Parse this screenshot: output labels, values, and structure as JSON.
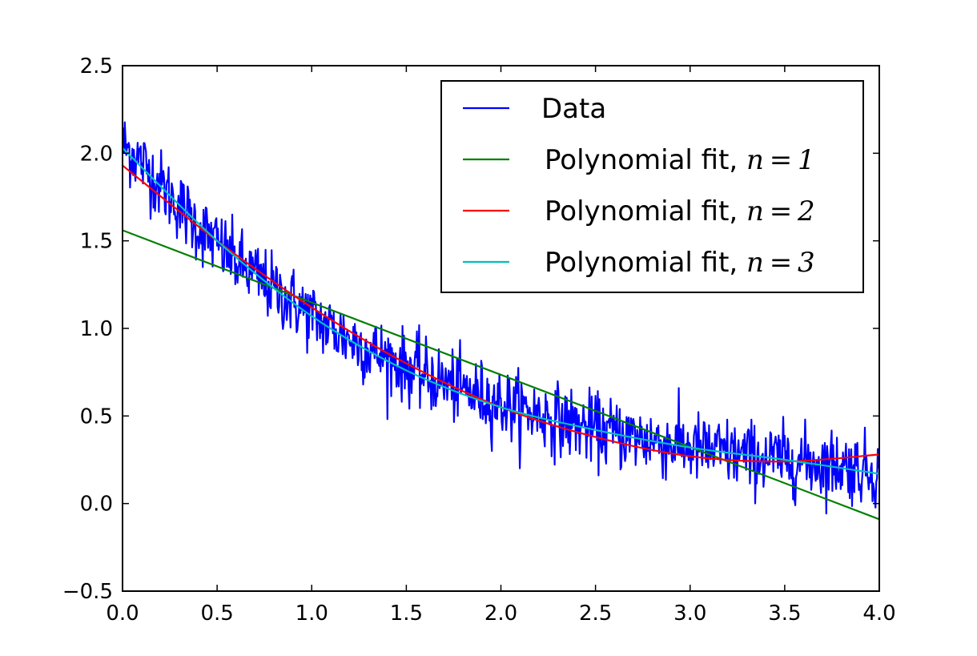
{
  "chart_data": {
    "type": "line",
    "title": "",
    "xlabel": "",
    "ylabel": "",
    "xlim": [
      0.0,
      4.0
    ],
    "ylim": [
      -0.5,
      2.5
    ],
    "xticks": [
      "0.0",
      "0.5",
      "1.0",
      "1.5",
      "2.0",
      "2.5",
      "3.0",
      "3.5",
      "4.0"
    ],
    "yticks": [
      "−0.5",
      "0.0",
      "0.5",
      "1.0",
      "1.5",
      "2.0",
      "2.5"
    ],
    "grid": false,
    "legend_position": "top-right",
    "series": [
      {
        "name": "Data",
        "color": "#0000ff",
        "style": "noisy line",
        "x": [
          0.0,
          0.1,
          0.2,
          0.3,
          0.4,
          0.5,
          0.6,
          0.7,
          0.8,
          0.9,
          1.0,
          1.1,
          1.2,
          1.3,
          1.4,
          1.5,
          1.6,
          1.7,
          1.8,
          1.9,
          2.0,
          2.1,
          2.2,
          2.3,
          2.4,
          2.5,
          2.6,
          2.7,
          2.8,
          2.9,
          3.0,
          3.1,
          3.2,
          3.3,
          3.4,
          3.5,
          3.6,
          3.7,
          3.8,
          3.9,
          4.0
        ],
        "y": [
          2.05,
          1.95,
          1.82,
          1.7,
          1.58,
          1.48,
          1.38,
          1.3,
          1.22,
          1.15,
          1.07,
          1.0,
          0.94,
          0.88,
          0.83,
          0.78,
          0.73,
          0.69,
          0.65,
          0.61,
          0.57,
          0.54,
          0.51,
          0.48,
          0.45,
          0.42,
          0.4,
          0.38,
          0.36,
          0.34,
          0.32,
          0.3,
          0.29,
          0.27,
          0.26,
          0.25,
          0.24,
          0.23,
          0.22,
          0.2,
          0.18
        ]
      },
      {
        "name": "Polynomial fit, n = 1",
        "label_text": "Polynomial fit, ",
        "label_math": "n = 1",
        "color": "#008000",
        "x": [
          0.0,
          4.0
        ],
        "y": [
          1.56,
          -0.09
        ]
      },
      {
        "name": "Polynomial fit, n = 2",
        "label_text": "Polynomial fit, ",
        "label_math": "n = 2",
        "color": "#ff0000",
        "x": [
          0.0,
          0.5,
          1.0,
          1.5,
          2.0,
          2.5,
          3.0,
          3.5,
          4.0
        ],
        "y": [
          1.93,
          1.5,
          1.12,
          0.8,
          0.55,
          0.38,
          0.27,
          0.24,
          0.28
        ]
      },
      {
        "name": "Polynomial fit, n = 3",
        "label_text": "Polynomial fit, ",
        "label_math": "n = 3",
        "color": "#00bfbf",
        "x": [
          0.0,
          0.5,
          1.0,
          1.5,
          2.0,
          2.5,
          3.0,
          3.5,
          4.0
        ],
        "y": [
          2.03,
          1.5,
          1.07,
          0.76,
          0.55,
          0.42,
          0.32,
          0.25,
          0.17
        ]
      }
    ]
  }
}
